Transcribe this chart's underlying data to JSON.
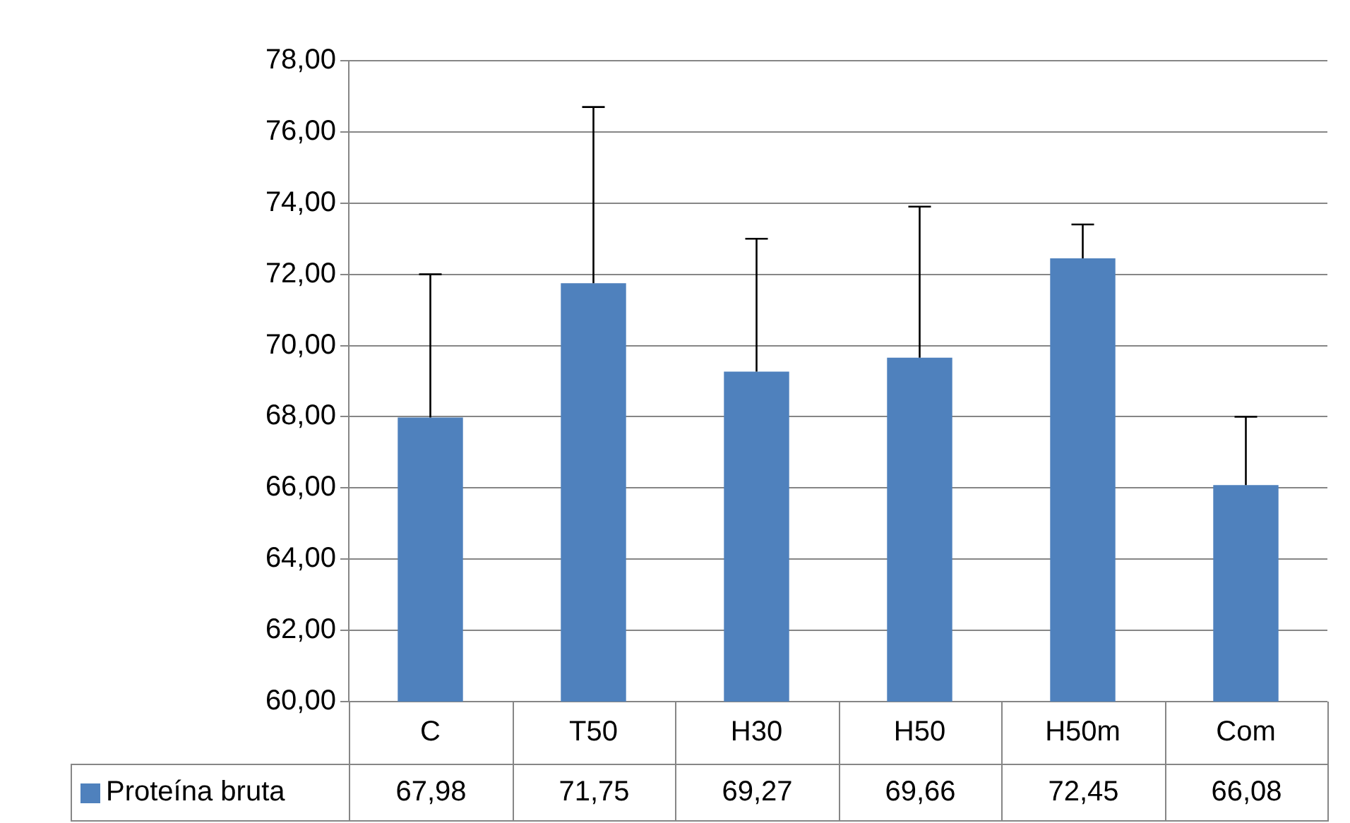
{
  "chart_data": {
    "type": "bar",
    "categories": [
      "C",
      "T50",
      "H30",
      "H50",
      "H50m",
      "Com"
    ],
    "series": [
      {
        "name": "Proteína bruta",
        "color": "#4f81bd",
        "values": [
          67.98,
          71.75,
          69.27,
          69.66,
          72.45,
          66.08
        ],
        "errors": [
          [
            67.98,
            72.0
          ],
          [
            71.75,
            76.7
          ],
          [
            69.27,
            73.0
          ],
          [
            69.66,
            73.9
          ],
          [
            72.45,
            73.4
          ],
          [
            66.08,
            68.0
          ]
        ],
        "value_labels": [
          "67,98",
          "71,75",
          "69,27",
          "69,66",
          "72,45",
          "66,08"
        ]
      }
    ],
    "ylim": [
      60,
      78
    ],
    "yticks": [
      {
        "value": 60,
        "label": "60,00"
      },
      {
        "value": 62,
        "label": "62,00"
      },
      {
        "value": 64,
        "label": "64,00"
      },
      {
        "value": 66,
        "label": "66,00"
      },
      {
        "value": 68,
        "label": "68,00"
      },
      {
        "value": 70,
        "label": "70,00"
      },
      {
        "value": 72,
        "label": "72,00"
      },
      {
        "value": 74,
        "label": "74,00"
      },
      {
        "value": 76,
        "label": "76,00"
      },
      {
        "value": 78,
        "label": "78,00"
      }
    ],
    "grid": "y",
    "legend": "bottom"
  }
}
